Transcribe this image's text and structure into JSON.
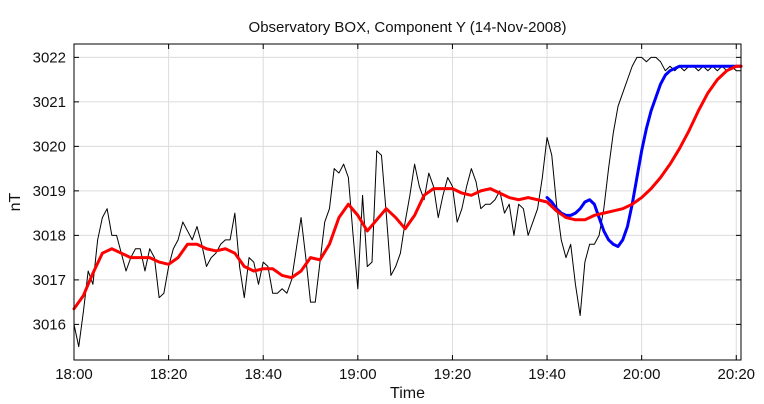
{
  "chart_data": {
    "type": "line",
    "title": "Observatory BOX,  Component Y   (14-Nov-2008)",
    "xlabel": "Time",
    "ylabel": "nT",
    "x_unit": "minutes after 18:00",
    "xlim": [
      0,
      141
    ],
    "ylim": [
      3015.2,
      3022.3
    ],
    "xticks": [
      {
        "value": 0,
        "label": "18:00"
      },
      {
        "value": 20,
        "label": "18:20"
      },
      {
        "value": 40,
        "label": "18:40"
      },
      {
        "value": 60,
        "label": "19:00"
      },
      {
        "value": 80,
        "label": "19:20"
      },
      {
        "value": 100,
        "label": "19:40"
      },
      {
        "value": 120,
        "label": "20:00"
      },
      {
        "value": 140,
        "label": "20:20"
      }
    ],
    "yticks": [
      {
        "value": 3016,
        "label": "3016"
      },
      {
        "value": 3017,
        "label": "3017"
      },
      {
        "value": 3018,
        "label": "3018"
      },
      {
        "value": 3019,
        "label": "3019"
      },
      {
        "value": 3020,
        "label": "3020"
      },
      {
        "value": 3021,
        "label": "3021"
      },
      {
        "value": 3022,
        "label": "3022"
      }
    ],
    "grid": true,
    "series": [
      {
        "color": "#000000",
        "width": 1,
        "x": [
          0,
          1,
          2,
          3,
          4,
          5,
          6,
          7,
          8,
          9,
          10,
          11,
          12,
          13,
          14,
          15,
          16,
          17,
          18,
          19,
          20,
          21,
          22,
          23,
          24,
          25,
          26,
          27,
          28,
          29,
          30,
          31,
          32,
          33,
          34,
          35,
          36,
          37,
          38,
          39,
          40,
          41,
          42,
          43,
          44,
          45,
          46,
          47,
          48,
          49,
          50,
          51,
          52,
          53,
          54,
          55,
          56,
          57,
          58,
          59,
          60,
          61,
          62,
          63,
          64,
          65,
          66,
          67,
          68,
          69,
          70,
          71,
          72,
          73,
          74,
          75,
          76,
          77,
          78,
          79,
          80,
          81,
          82,
          83,
          84,
          85,
          86,
          87,
          88,
          89,
          90,
          91,
          92,
          93,
          94,
          95,
          96,
          97,
          98,
          99,
          100,
          101,
          102,
          103,
          104,
          105,
          106,
          107,
          108,
          109,
          110,
          111,
          112,
          113,
          114,
          115,
          116,
          117,
          118,
          119,
          120,
          121,
          122,
          123,
          124,
          125,
          126,
          127,
          128,
          129,
          130,
          131,
          132,
          133,
          134,
          135,
          136,
          137,
          138,
          139,
          140,
          141
        ],
        "values": [
          3016.0,
          3015.5,
          3016.3,
          3017.2,
          3016.9,
          3017.9,
          3018.4,
          3018.6,
          3018.0,
          3018.0,
          3017.6,
          3017.2,
          3017.5,
          3017.7,
          3017.7,
          3017.2,
          3017.7,
          3017.5,
          3016.6,
          3016.7,
          3017.3,
          3017.7,
          3017.9,
          3018.3,
          3018.1,
          3017.9,
          3018.2,
          3017.8,
          3017.3,
          3017.5,
          3017.6,
          3017.8,
          3017.9,
          3017.9,
          3018.5,
          3017.3,
          3016.6,
          3017.5,
          3017.4,
          3016.9,
          3017.4,
          3017.3,
          3016.7,
          3016.7,
          3016.8,
          3016.7,
          3017.0,
          3017.7,
          3018.4,
          3017.5,
          3016.5,
          3016.5,
          3017.4,
          3018.3,
          3018.6,
          3019.5,
          3019.4,
          3019.6,
          3019.3,
          3018.0,
          3016.8,
          3018.9,
          3017.3,
          3017.4,
          3019.9,
          3019.8,
          3018.5,
          3017.1,
          3017.3,
          3017.6,
          3018.3,
          3018.9,
          3019.6,
          3019.1,
          3018.8,
          3019.4,
          3019.1,
          3018.4,
          3018.9,
          3019.3,
          3019.1,
          3018.3,
          3018.6,
          3019.1,
          3019.5,
          3019.2,
          3018.6,
          3018.7,
          3018.7,
          3018.8,
          3019.0,
          3018.5,
          3018.7,
          3018.0,
          3018.7,
          3018.6,
          3018.0,
          3018.3,
          3018.6,
          3019.3,
          3020.2,
          3019.8,
          3018.7,
          3017.9,
          3017.5,
          3017.8,
          3016.9,
          3016.2,
          3017.4,
          3017.8,
          3017.8,
          3018.0,
          3018.6,
          3019.5,
          3020.3,
          3020.9,
          3021.2,
          3021.5,
          3021.8,
          3022.0,
          3022.0,
          3021.9,
          3022.0,
          3022.0,
          3021.9,
          3021.7,
          3021.8,
          3021.7,
          3021.8,
          3021.7,
          3021.8,
          3021.8,
          3021.7,
          3021.8,
          3021.7,
          3021.8,
          3021.7,
          3021.8,
          3021.7,
          3021.8,
          3021.7,
          3021.7
        ]
      },
      {
        "color": "#0000ff",
        "width": 3,
        "x": [
          100,
          101,
          102,
          103,
          104,
          105,
          106,
          107,
          108,
          109,
          110,
          111,
          112,
          113,
          114,
          115,
          116,
          117,
          118,
          119,
          120,
          121,
          122,
          123,
          124,
          125,
          126,
          127,
          128,
          129,
          130,
          131,
          132,
          133,
          134,
          135,
          136,
          137,
          138,
          139,
          140,
          141
        ],
        "values": [
          3018.85,
          3018.75,
          3018.6,
          3018.5,
          3018.45,
          3018.45,
          3018.5,
          3018.6,
          3018.75,
          3018.8,
          3018.7,
          3018.4,
          3018.1,
          3017.9,
          3017.8,
          3017.75,
          3017.9,
          3018.2,
          3018.7,
          3019.3,
          3019.9,
          3020.4,
          3020.8,
          3021.1,
          3021.4,
          3021.6,
          3021.7,
          3021.75,
          3021.8,
          3021.8,
          3021.8,
          3021.8,
          3021.8,
          3021.8,
          3021.8,
          3021.8,
          3021.8,
          3021.8,
          3021.8,
          3021.8,
          3021.8,
          3021.8
        ]
      },
      {
        "color": "#ff0000",
        "width": 3,
        "x": [
          0,
          2,
          4,
          6,
          8,
          10,
          12,
          14,
          16,
          18,
          20,
          22,
          24,
          26,
          28,
          30,
          32,
          34,
          36,
          38,
          40,
          42,
          44,
          46,
          48,
          50,
          52,
          54,
          56,
          58,
          60,
          62,
          64,
          66,
          68,
          70,
          72,
          74,
          76,
          78,
          80,
          82,
          84,
          86,
          88,
          90,
          92,
          94,
          96,
          98,
          100,
          102,
          104,
          106,
          108,
          110,
          112,
          114,
          116,
          118,
          120,
          122,
          124,
          126,
          128,
          130,
          132,
          134,
          136,
          138,
          140,
          141
        ],
        "values": [
          3016.35,
          3016.65,
          3017.15,
          3017.6,
          3017.7,
          3017.6,
          3017.5,
          3017.5,
          3017.5,
          3017.4,
          3017.35,
          3017.5,
          3017.8,
          3017.8,
          3017.7,
          3017.65,
          3017.7,
          3017.6,
          3017.3,
          3017.2,
          3017.25,
          3017.25,
          3017.1,
          3017.05,
          3017.2,
          3017.5,
          3017.45,
          3017.8,
          3018.4,
          3018.7,
          3018.45,
          3018.1,
          3018.35,
          3018.6,
          3018.4,
          3018.15,
          3018.45,
          3018.9,
          3019.05,
          3019.05,
          3019.05,
          3018.95,
          3018.9,
          3019.0,
          3019.05,
          3018.95,
          3018.85,
          3018.8,
          3018.85,
          3018.8,
          3018.75,
          3018.55,
          3018.4,
          3018.35,
          3018.35,
          3018.45,
          3018.5,
          3018.55,
          3018.6,
          3018.7,
          3018.85,
          3019.05,
          3019.3,
          3019.6,
          3019.95,
          3020.35,
          3020.8,
          3021.2,
          3021.5,
          3021.7,
          3021.8,
          3021.8
        ]
      }
    ]
  }
}
